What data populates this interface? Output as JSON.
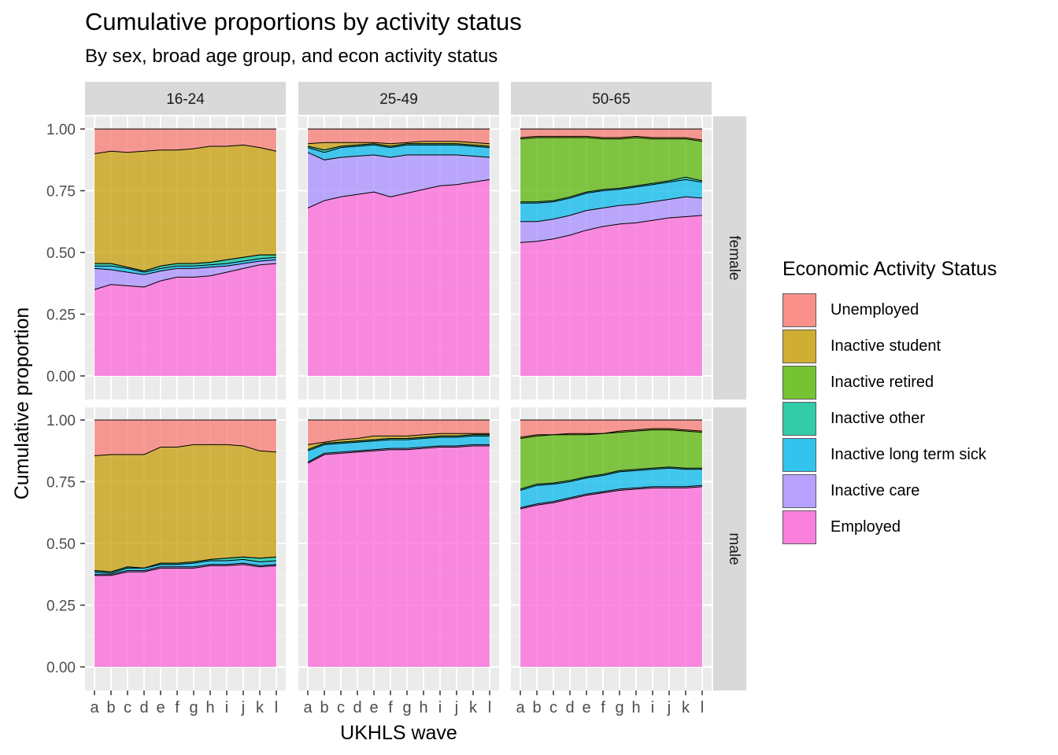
{
  "title": "Cumulative proportions by activity status",
  "subtitle": "By sex, broad age group, and econ activity status",
  "chart_data": {
    "type": "area",
    "stacked": true,
    "facet_cols": [
      "16-24",
      "25-49",
      "50-65"
    ],
    "facet_rows": [
      "female",
      "male"
    ],
    "x": [
      "a",
      "b",
      "c",
      "d",
      "e",
      "f",
      "g",
      "h",
      "i",
      "j",
      "k",
      "l"
    ],
    "xlabel": "UKHLS wave",
    "ylabel": "Cumulative proportion",
    "ylim": [
      0,
      1
    ],
    "yticks": [
      "0.00",
      "0.25",
      "0.50",
      "0.75",
      "1.00"
    ],
    "grid": true,
    "legend": {
      "title": "Economic Activity Status",
      "position": "right"
    },
    "categories": [
      "Unemployed",
      "Inactive student",
      "Inactive retired",
      "Inactive other",
      "Inactive long term sick",
      "Inactive care",
      "Employed"
    ],
    "colors": {
      "Unemployed": "#F8766D",
      "Inactive student": "#C49A00",
      "Inactive retired": "#53B400",
      "Inactive other": "#00C094",
      "Inactive long term sick": "#00B6EB",
      "Inactive care": "#A58AFF",
      "Employed": "#FB61D7"
    },
    "panels": [
      {
        "age": "16-24",
        "sex": "female",
        "cumulative": {
          "Employed": [
            0.35,
            0.37,
            0.365,
            0.36,
            0.385,
            0.4,
            0.4,
            0.405,
            0.42,
            0.435,
            0.45,
            0.455
          ],
          "Inactive care": [
            0.435,
            0.43,
            0.42,
            0.41,
            0.425,
            0.435,
            0.435,
            0.44,
            0.445,
            0.455,
            0.465,
            0.47
          ],
          "Inactive long term sick": [
            0.445,
            0.445,
            0.435,
            0.42,
            0.435,
            0.445,
            0.445,
            0.45,
            0.455,
            0.465,
            0.475,
            0.48
          ],
          "Inactive other": [
            0.455,
            0.455,
            0.44,
            0.425,
            0.445,
            0.455,
            0.455,
            0.46,
            0.47,
            0.48,
            0.49,
            0.49
          ],
          "Inactive retired": [
            0.455,
            0.455,
            0.44,
            0.425,
            0.445,
            0.455,
            0.455,
            0.46,
            0.47,
            0.48,
            0.49,
            0.49
          ],
          "Inactive student": [
            0.9,
            0.91,
            0.905,
            0.91,
            0.915,
            0.915,
            0.92,
            0.93,
            0.93,
            0.935,
            0.925,
            0.91
          ],
          "Unemployed": [
            1,
            1,
            1,
            1,
            1,
            1,
            1,
            1,
            1,
            1,
            1,
            1
          ]
        }
      },
      {
        "age": "25-49",
        "sex": "female",
        "cumulative": {
          "Employed": [
            0.68,
            0.71,
            0.725,
            0.735,
            0.745,
            0.725,
            0.74,
            0.755,
            0.77,
            0.775,
            0.785,
            0.795
          ],
          "Inactive care": [
            0.905,
            0.875,
            0.885,
            0.89,
            0.895,
            0.885,
            0.895,
            0.895,
            0.895,
            0.895,
            0.89,
            0.885
          ],
          "Inactive long term sick": [
            0.925,
            0.905,
            0.925,
            0.93,
            0.935,
            0.925,
            0.935,
            0.935,
            0.935,
            0.935,
            0.93,
            0.925
          ],
          "Inactive other": [
            0.93,
            0.915,
            0.93,
            0.935,
            0.94,
            0.93,
            0.94,
            0.94,
            0.94,
            0.94,
            0.935,
            0.93
          ],
          "Inactive retired": [
            0.93,
            0.915,
            0.93,
            0.935,
            0.94,
            0.93,
            0.94,
            0.94,
            0.94,
            0.94,
            0.935,
            0.93
          ],
          "Inactive student": [
            0.94,
            0.945,
            0.945,
            0.945,
            0.945,
            0.94,
            0.945,
            0.95,
            0.95,
            0.95,
            0.945,
            0.94
          ],
          "Unemployed": [
            1,
            1,
            1,
            1,
            1,
            1,
            1,
            1,
            1,
            1,
            1,
            1
          ]
        }
      },
      {
        "age": "50-65",
        "sex": "female",
        "cumulative": {
          "Employed": [
            0.54,
            0.545,
            0.555,
            0.57,
            0.59,
            0.605,
            0.615,
            0.62,
            0.63,
            0.64,
            0.645,
            0.65
          ],
          "Inactive care": [
            0.625,
            0.625,
            0.635,
            0.65,
            0.67,
            0.68,
            0.69,
            0.695,
            0.705,
            0.715,
            0.725,
            0.72
          ],
          "Inactive long term sick": [
            0.7,
            0.7,
            0.705,
            0.72,
            0.74,
            0.75,
            0.755,
            0.765,
            0.775,
            0.785,
            0.795,
            0.785
          ],
          "Inactive other": [
            0.705,
            0.705,
            0.71,
            0.725,
            0.745,
            0.755,
            0.76,
            0.77,
            0.78,
            0.79,
            0.805,
            0.79
          ],
          "Inactive retired": [
            0.96,
            0.965,
            0.965,
            0.965,
            0.965,
            0.96,
            0.96,
            0.965,
            0.96,
            0.96,
            0.96,
            0.95
          ],
          "Inactive student": [
            0.965,
            0.97,
            0.97,
            0.97,
            0.97,
            0.965,
            0.965,
            0.97,
            0.965,
            0.965,
            0.965,
            0.955
          ],
          "Unemployed": [
            1,
            1,
            1,
            1,
            1,
            1,
            1,
            1,
            1,
            1,
            1,
            1
          ]
        }
      },
      {
        "age": "16-24",
        "sex": "male",
        "cumulative": {
          "Employed": [
            0.37,
            0.37,
            0.385,
            0.385,
            0.4,
            0.4,
            0.4,
            0.41,
            0.41,
            0.415,
            0.405,
            0.41
          ],
          "Inactive care": [
            0.375,
            0.375,
            0.39,
            0.39,
            0.405,
            0.405,
            0.405,
            0.415,
            0.415,
            0.42,
            0.41,
            0.415
          ],
          "Inactive long term sick": [
            0.385,
            0.38,
            0.4,
            0.4,
            0.415,
            0.415,
            0.42,
            0.43,
            0.43,
            0.435,
            0.425,
            0.43
          ],
          "Inactive other": [
            0.39,
            0.385,
            0.405,
            0.4,
            0.42,
            0.42,
            0.425,
            0.435,
            0.44,
            0.445,
            0.44,
            0.445
          ],
          "Inactive retired": [
            0.39,
            0.385,
            0.405,
            0.4,
            0.42,
            0.42,
            0.425,
            0.435,
            0.44,
            0.445,
            0.44,
            0.445
          ],
          "Inactive student": [
            0.855,
            0.86,
            0.86,
            0.86,
            0.89,
            0.89,
            0.9,
            0.9,
            0.9,
            0.895,
            0.875,
            0.87
          ],
          "Unemployed": [
            1,
            1,
            1,
            1,
            1,
            1,
            1,
            1,
            1,
            1,
            1,
            1
          ]
        }
      },
      {
        "age": "25-49",
        "sex": "male",
        "cumulative": {
          "Employed": [
            0.825,
            0.86,
            0.865,
            0.87,
            0.875,
            0.88,
            0.88,
            0.885,
            0.89,
            0.89,
            0.895,
            0.895
          ],
          "Inactive care": [
            0.83,
            0.865,
            0.87,
            0.875,
            0.88,
            0.885,
            0.885,
            0.89,
            0.895,
            0.895,
            0.9,
            0.9
          ],
          "Inactive long term sick": [
            0.875,
            0.9,
            0.905,
            0.91,
            0.915,
            0.92,
            0.92,
            0.925,
            0.93,
            0.93,
            0.935,
            0.935
          ],
          "Inactive other": [
            0.88,
            0.905,
            0.91,
            0.915,
            0.92,
            0.925,
            0.925,
            0.93,
            0.935,
            0.935,
            0.94,
            0.94
          ],
          "Inactive retired": [
            0.88,
            0.905,
            0.91,
            0.915,
            0.92,
            0.925,
            0.925,
            0.93,
            0.935,
            0.935,
            0.94,
            0.94
          ],
          "Inactive student": [
            0.9,
            0.91,
            0.92,
            0.925,
            0.935,
            0.935,
            0.935,
            0.94,
            0.945,
            0.945,
            0.945,
            0.945
          ],
          "Unemployed": [
            1,
            1,
            1,
            1,
            1,
            1,
            1,
            1,
            1,
            1,
            1,
            1
          ]
        }
      },
      {
        "age": "50-65",
        "sex": "male",
        "cumulative": {
          "Employed": [
            0.64,
            0.655,
            0.665,
            0.68,
            0.695,
            0.705,
            0.715,
            0.72,
            0.725,
            0.725,
            0.725,
            0.73
          ],
          "Inactive care": [
            0.645,
            0.66,
            0.67,
            0.685,
            0.7,
            0.71,
            0.72,
            0.725,
            0.73,
            0.73,
            0.73,
            0.735
          ],
          "Inactive long term sick": [
            0.715,
            0.735,
            0.74,
            0.75,
            0.765,
            0.775,
            0.79,
            0.795,
            0.8,
            0.805,
            0.8,
            0.8
          ],
          "Inactive other": [
            0.72,
            0.74,
            0.745,
            0.755,
            0.77,
            0.78,
            0.795,
            0.8,
            0.805,
            0.81,
            0.805,
            0.805
          ],
          "Inactive retired": [
            0.925,
            0.935,
            0.94,
            0.94,
            0.94,
            0.945,
            0.95,
            0.955,
            0.96,
            0.96,
            0.955,
            0.95
          ],
          "Inactive student": [
            0.93,
            0.94,
            0.94,
            0.945,
            0.945,
            0.945,
            0.955,
            0.96,
            0.965,
            0.965,
            0.96,
            0.955
          ],
          "Unemployed": [
            1,
            1,
            1,
            1,
            1,
            1,
            1,
            1,
            1,
            1,
            1,
            1
          ]
        }
      }
    ]
  }
}
